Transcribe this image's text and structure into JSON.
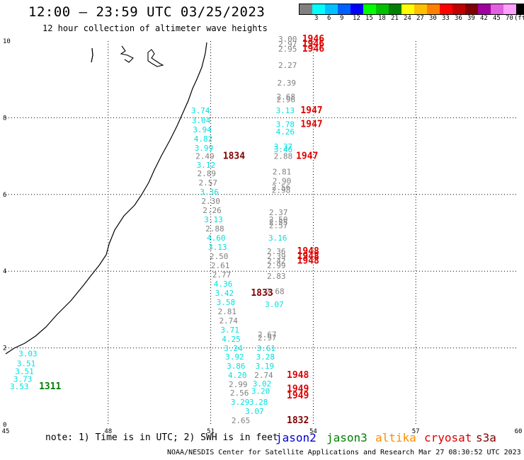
{
  "header": {
    "title": "12:00 – 23:59 UTC 03/25/2023",
    "subtitle": "12 hour collection of altimeter wave heights"
  },
  "color_scale": {
    "unit": "(ft)",
    "swatches": [
      {
        "label": "",
        "color": "#808080"
      },
      {
        "label": "3",
        "color": "#00ffff"
      },
      {
        "label": "6",
        "color": "#00c0ff"
      },
      {
        "label": "9",
        "color": "#0060ff"
      },
      {
        "label": "12",
        "color": "#0000ff"
      },
      {
        "label": "15",
        "color": "#00ff00"
      },
      {
        "label": "18",
        "color": "#00c000"
      },
      {
        "label": "21",
        "color": "#008000"
      },
      {
        "label": "24",
        "color": "#ffff00"
      },
      {
        "label": "27",
        "color": "#ffc000"
      },
      {
        "label": "30",
        "color": "#ff8000"
      },
      {
        "label": "33",
        "color": "#ff0000"
      },
      {
        "label": "36",
        "color": "#c00000"
      },
      {
        "label": "39",
        "color": "#800000"
      },
      {
        "label": "42",
        "color": "#a000a0"
      },
      {
        "label": "45",
        "color": "#e060e0"
      },
      {
        "label": "70",
        "color": "#ffa0ff"
      },
      {
        "label": "",
        "color": "#000000"
      }
    ]
  },
  "map": {
    "lon_ticks": [
      "45",
      "48",
      "51",
      "54",
      "57",
      "60"
    ],
    "lat_ticks": [
      "0",
      "2",
      "4",
      "6",
      "8",
      "10"
    ],
    "lon_range": [
      45,
      60
    ],
    "lat_range": [
      0,
      10
    ]
  },
  "observations": {
    "cyan_color": "#00e0e0",
    "gray_color": "#808080",
    "left_track": [
      {
        "v": "3.03",
        "lon": 45.65,
        "lat": 1.78
      },
      {
        "v": "3.51",
        "lon": 45.6,
        "lat": 1.52
      },
      {
        "v": "3.51",
        "lon": 45.55,
        "lat": 1.32
      },
      {
        "v": "3.73",
        "lon": 45.5,
        "lat": 1.12
      },
      {
        "v": "3.53",
        "lon": 45.4,
        "lat": 0.92
      }
    ],
    "track_a": [
      {
        "v": "3.74",
        "c": "cyan",
        "lon": 50.7,
        "lat": 8.12
      },
      {
        "v": "3.04",
        "c": "cyan",
        "lon": 50.72,
        "lat": 7.86
      },
      {
        "v": "3.94",
        "c": "cyan",
        "lon": 50.75,
        "lat": 7.62
      },
      {
        "v": "4.82",
        "c": "cyan",
        "lon": 50.78,
        "lat": 7.38
      },
      {
        "v": "3.99",
        "c": "cyan",
        "lon": 50.8,
        "lat": 7.14
      },
      {
        "v": "2.49",
        "c": "gray",
        "lon": 50.83,
        "lat": 6.93
      },
      {
        "v": "3.12",
        "c": "cyan",
        "lon": 50.86,
        "lat": 6.7
      },
      {
        "v": "2.89",
        "c": "gray",
        "lon": 50.88,
        "lat": 6.48
      },
      {
        "v": "2.57",
        "c": "gray",
        "lon": 50.92,
        "lat": 6.24
      },
      {
        "v": "3.36",
        "c": "cyan",
        "lon": 50.96,
        "lat": 6.0
      },
      {
        "v": "2.30",
        "c": "gray",
        "lon": 51.0,
        "lat": 5.76
      },
      {
        "v": "2.26",
        "c": "gray",
        "lon": 51.04,
        "lat": 5.52
      },
      {
        "v": "3.13",
        "c": "cyan",
        "lon": 51.08,
        "lat": 5.28
      },
      {
        "v": "2.88",
        "c": "gray",
        "lon": 51.12,
        "lat": 5.04
      },
      {
        "v": "4.60",
        "c": "cyan",
        "lon": 51.16,
        "lat": 4.8
      },
      {
        "v": "3.13",
        "c": "cyan",
        "lon": 51.2,
        "lat": 4.56
      },
      {
        "v": "2.50",
        "c": "gray",
        "lon": 51.24,
        "lat": 4.32
      },
      {
        "v": "2.61",
        "c": "gray",
        "lon": 51.28,
        "lat": 4.08
      },
      {
        "v": "2.77",
        "c": "gray",
        "lon": 51.32,
        "lat": 3.84
      },
      {
        "v": "4.36",
        "c": "cyan",
        "lon": 51.36,
        "lat": 3.6
      },
      {
        "v": "3.42",
        "c": "cyan",
        "lon": 51.4,
        "lat": 3.36
      },
      {
        "v": "3.58",
        "c": "cyan",
        "lon": 51.44,
        "lat": 3.12
      },
      {
        "v": "2.81",
        "c": "gray",
        "lon": 51.48,
        "lat": 2.88
      },
      {
        "v": "2.74",
        "c": "gray",
        "lon": 51.52,
        "lat": 2.64
      },
      {
        "v": "3.71",
        "c": "cyan",
        "lon": 51.56,
        "lat": 2.4
      },
      {
        "v": "4.25",
        "c": "cyan",
        "lon": 51.6,
        "lat": 2.16
      },
      {
        "v": "3.24",
        "c": "cyan",
        "lon": 51.66,
        "lat": 1.92
      },
      {
        "v": "3.92",
        "c": "cyan",
        "lon": 51.7,
        "lat": 1.7
      },
      {
        "v": "3.86",
        "c": "cyan",
        "lon": 51.74,
        "lat": 1.46
      },
      {
        "v": "4.20",
        "c": "cyan",
        "lon": 51.78,
        "lat": 1.22
      },
      {
        "v": "2.99",
        "c": "gray",
        "lon": 51.8,
        "lat": 0.98
      },
      {
        "v": "2.56",
        "c": "gray",
        "lon": 51.84,
        "lat": 0.76
      },
      {
        "v": "3.29",
        "c": "cyan",
        "lon": 51.86,
        "lat": 0.52
      },
      {
        "v": "2.65",
        "c": "gray",
        "lon": 51.88,
        "lat": 0.04
      }
    ],
    "track_b": [
      {
        "v": "3.00",
        "c": "gray",
        "lon": 53.25,
        "lat": 9.98
      },
      {
        "v": "2.97",
        "c": "gray",
        "lon": 53.25,
        "lat": 9.85
      },
      {
        "v": "2.95",
        "c": "gray",
        "lon": 53.25,
        "lat": 9.72
      },
      {
        "v": "2.27",
        "c": "gray",
        "lon": 53.25,
        "lat": 9.3
      },
      {
        "v": "2.39",
        "c": "gray",
        "lon": 53.22,
        "lat": 8.84
      },
      {
        "v": "2.68",
        "c": "gray",
        "lon": 53.2,
        "lat": 8.48
      },
      {
        "v": "2.96",
        "c": "gray",
        "lon": 53.2,
        "lat": 8.4
      },
      {
        "v": "3.13",
        "c": "cyan",
        "lon": 53.18,
        "lat": 8.12
      },
      {
        "v": "3.78",
        "c": "cyan",
        "lon": 53.18,
        "lat": 7.76
      },
      {
        "v": "4.26",
        "c": "cyan",
        "lon": 53.18,
        "lat": 7.56
      },
      {
        "v": "3.37",
        "c": "cyan",
        "lon": 53.12,
        "lat": 7.18
      },
      {
        "v": "3.46",
        "c": "cyan",
        "lon": 53.12,
        "lat": 7.1
      },
      {
        "v": "2.88",
        "c": "gray",
        "lon": 53.12,
        "lat": 6.93
      },
      {
        "v": "2.81",
        "c": "gray",
        "lon": 53.08,
        "lat": 6.52
      },
      {
        "v": "2.90",
        "c": "gray",
        "lon": 53.08,
        "lat": 6.28
      },
      {
        "v": "2.56",
        "c": "gray",
        "lon": 53.06,
        "lat": 6.12
      },
      {
        "v": "2.98",
        "c": "gray",
        "lon": 53.06,
        "lat": 6.04
      },
      {
        "v": "2.37",
        "c": "gray",
        "lon": 52.98,
        "lat": 5.46
      },
      {
        "v": "2.50",
        "c": "gray",
        "lon": 52.98,
        "lat": 5.28
      },
      {
        "v": "2.55",
        "c": "gray",
        "lon": 52.98,
        "lat": 5.2
      },
      {
        "v": "2.57",
        "c": "gray",
        "lon": 52.98,
        "lat": 5.12
      },
      {
        "v": "3.16",
        "c": "cyan",
        "lon": 52.96,
        "lat": 4.8
      },
      {
        "v": "2.36",
        "c": "gray",
        "lon": 52.92,
        "lat": 4.45
      },
      {
        "v": "2.39",
        "c": "gray",
        "lon": 52.92,
        "lat": 4.32
      },
      {
        "v": "2.42",
        "c": "gray",
        "lon": 52.92,
        "lat": 4.2
      },
      {
        "v": "2.99",
        "c": "gray",
        "lon": 52.92,
        "lat": 4.08
      },
      {
        "v": "2.83",
        "c": "gray",
        "lon": 52.92,
        "lat": 3.8
      },
      {
        "v": "2.68",
        "c": "gray",
        "lon": 52.88,
        "lat": 3.4
      },
      {
        "v": "3.07",
        "c": "cyan",
        "lon": 52.86,
        "lat": 3.06
      },
      {
        "v": "2.67",
        "c": "gray",
        "lon": 52.65,
        "lat": 2.28
      },
      {
        "v": "2.97",
        "c": "gray",
        "lon": 52.65,
        "lat": 2.2
      },
      {
        "v": "3.61",
        "c": "cyan",
        "lon": 52.62,
        "lat": 1.92
      },
      {
        "v": "3.28",
        "c": "cyan",
        "lon": 52.6,
        "lat": 1.7
      },
      {
        "v": "3.19",
        "c": "cyan",
        "lon": 52.58,
        "lat": 1.46
      },
      {
        "v": "2.74",
        "c": "gray",
        "lon": 52.55,
        "lat": 1.22
      },
      {
        "v": "3.02",
        "c": "cyan",
        "lon": 52.5,
        "lat": 1.0
      },
      {
        "v": "3.20",
        "c": "cyan",
        "lon": 52.46,
        "lat": 0.8
      },
      {
        "v": "3.28",
        "c": "cyan",
        "lon": 52.4,
        "lat": 0.52
      },
      {
        "v": "3.07",
        "c": "cyan",
        "lon": 52.28,
        "lat": 0.28
      }
    ],
    "passes": [
      {
        "t": "1946",
        "color": "#dd0000",
        "lon": 54.0,
        "lat": 9.98
      },
      {
        "t": "1946",
        "color": "#dd0000",
        "lon": 54.0,
        "lat": 9.85
      },
      {
        "t": "1946",
        "color": "#dd0000",
        "lon": 54.0,
        "lat": 9.72
      },
      {
        "t": "1947",
        "color": "#dd0000",
        "lon": 53.95,
        "lat": 8.12
      },
      {
        "t": "1947",
        "color": "#dd0000",
        "lon": 53.95,
        "lat": 7.76
      },
      {
        "t": "1947",
        "color": "#dd0000",
        "lon": 53.82,
        "lat": 6.93
      },
      {
        "t": "1834",
        "color": "#800000",
        "lon": 51.68,
        "lat": 6.93
      },
      {
        "t": "1948",
        "color": "#dd0000",
        "lon": 53.85,
        "lat": 4.45
      },
      {
        "t": "1948",
        "color": "#dd0000",
        "lon": 53.85,
        "lat": 4.32
      },
      {
        "t": "1948",
        "color": "#dd0000",
        "lon": 53.85,
        "lat": 4.2
      },
      {
        "t": "1833",
        "color": "#800000",
        "lon": 52.5,
        "lat": 3.36
      },
      {
        "t": "1948",
        "color": "#dd0000",
        "lon": 53.55,
        "lat": 1.22
      },
      {
        "t": "1949",
        "color": "#dd0000",
        "lon": 53.55,
        "lat": 0.86
      },
      {
        "t": "1949",
        "color": "#dd0000",
        "lon": 53.55,
        "lat": 0.68
      },
      {
        "t": "1832",
        "color": "#800000",
        "lon": 53.55,
        "lat": 0.04
      },
      {
        "t": "1311",
        "color": "#008000",
        "lon": 46.3,
        "lat": 0.92
      }
    ]
  },
  "footnote": "note: 1) Time is in UTC; 2) SWH is in feet",
  "legend": [
    {
      "name": "jason2",
      "color": "#0000cc"
    },
    {
      "name": "jason3",
      "color": "#008000"
    },
    {
      "name": "altika",
      "color": "#ff8c00"
    },
    {
      "name": "cryosat",
      "color": "#dd0000"
    },
    {
      "name": "s3a",
      "color": "#800000"
    }
  ],
  "credit": "NOAA/NESDIS Center for Satellite Applications and Research   Mar 27 08:30:52 UTC 2023"
}
